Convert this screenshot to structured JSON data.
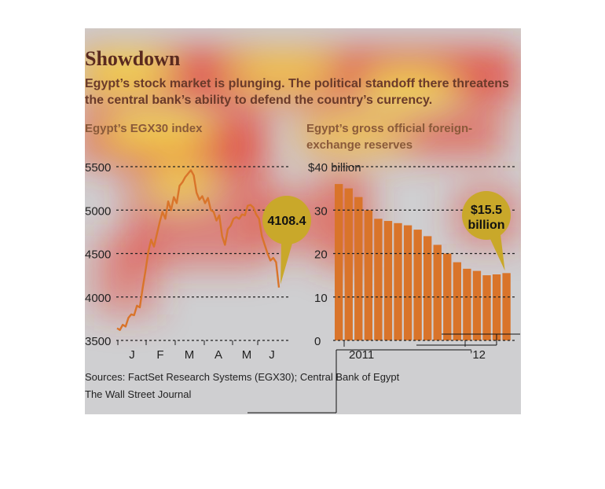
{
  "header": {
    "title": "Showdown",
    "subtitle": "Egypt’s stock market is plunging. The political standoff there threatens the central bank’s ability to defend the country’s currency."
  },
  "footer": {
    "sources": "Sources: FactSet Research Systems (EGX30); Central Bank of Egypt",
    "publisher": "The Wall Street Journal"
  },
  "colors": {
    "background": "#cfcfd1",
    "line": "#d9742a",
    "bar": "#d9742a",
    "callout": "#c9a82a",
    "grid": "#222222"
  },
  "chart_data": [
    {
      "type": "line",
      "title": "Egypt’s EGX30 index",
      "ylim": [
        3500,
        5500
      ],
      "yticks": [
        5500,
        5000,
        4500,
        4000,
        3500
      ],
      "xticks": [
        "J",
        "F",
        "M",
        "A",
        "M",
        "J"
      ],
      "grid": true,
      "series": [
        {
          "values": [
            3640,
            3620,
            3680,
            3660,
            3760,
            3800,
            3790,
            3900,
            3880,
            4100,
            4300,
            4520,
            4660,
            4580,
            4720,
            4860,
            4980,
            4900,
            5100,
            5000,
            5150,
            5080,
            5280,
            5320,
            5380,
            5420,
            5460,
            5400,
            5200,
            5120,
            5160,
            5080,
            5140,
            5000,
            4980,
            4880,
            4940,
            4700,
            4600,
            4780,
            4820,
            4900,
            4920,
            4900,
            4950,
            4940,
            5050,
            5060,
            5030,
            4950,
            4900,
            4700,
            4600,
            4500,
            4420,
            4450,
            4400,
            4108.4
          ]
        }
      ],
      "callout": "4108.4"
    },
    {
      "type": "bar",
      "title": "Egypt’s gross official foreign-exchange reserves",
      "ylim": [
        0,
        40
      ],
      "yticks": [
        40,
        30,
        20,
        10,
        0
      ],
      "y_unit_label": "billion",
      "y_prefix": "$",
      "xticks": [
        "2011",
        "’12"
      ],
      "grid": true,
      "values": [
        36,
        35,
        33,
        30,
        28,
        27.5,
        27,
        26.5,
        25.5,
        24,
        22,
        20,
        18,
        16.5,
        16,
        15,
        15.2,
        15.5
      ],
      "callout_line1": "$15.5",
      "callout_line2": "billion"
    }
  ]
}
